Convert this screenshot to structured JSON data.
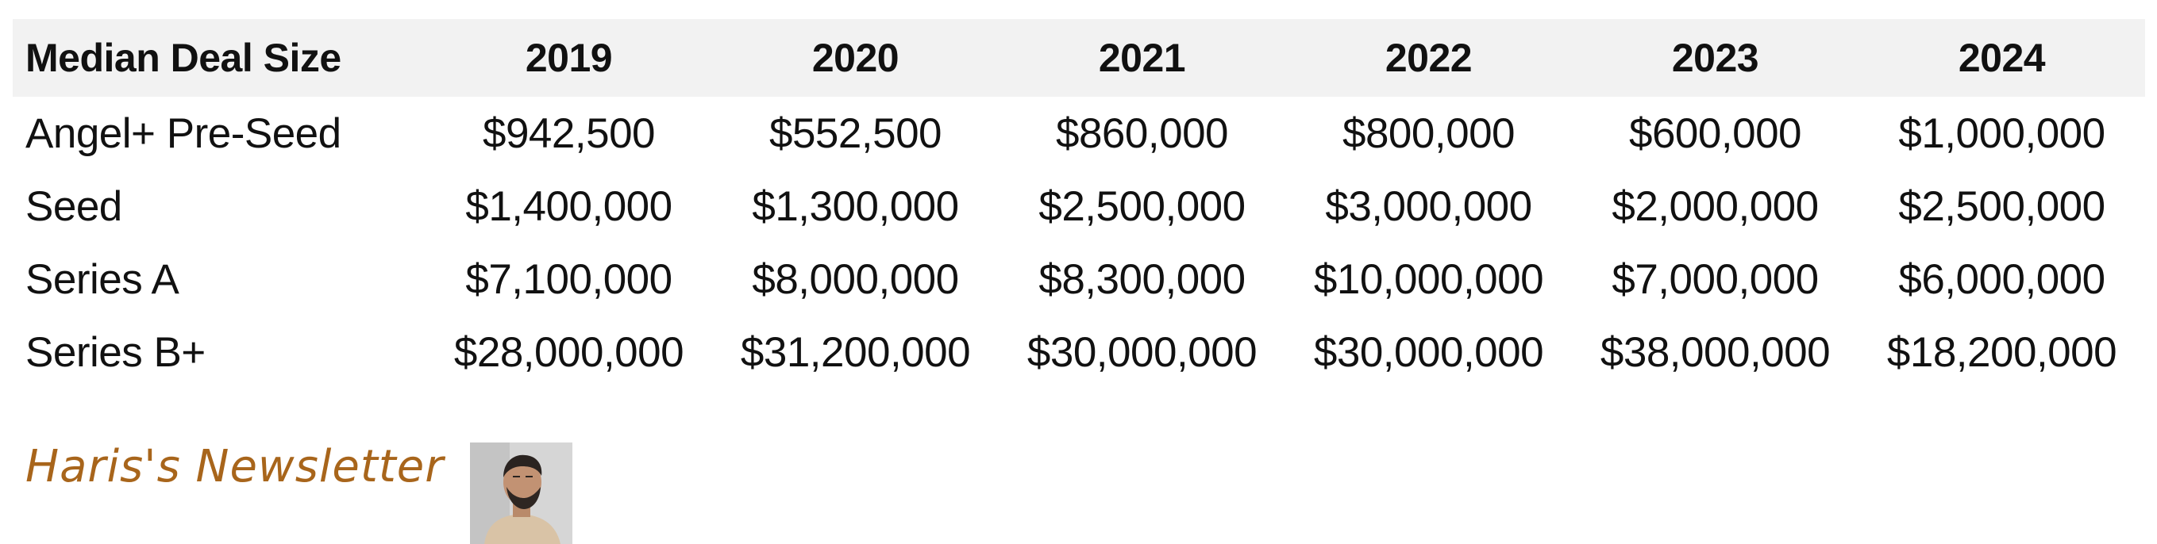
{
  "table": {
    "header": [
      "Median Deal Size",
      "2019",
      "2020",
      "2021",
      "2022",
      "2023",
      "2024"
    ],
    "rows": [
      {
        "label": "Angel+ Pre-Seed",
        "values": [
          "$942,500",
          "$552,500",
          "$860,000",
          "$800,000",
          "$600,000",
          "$1,000,000"
        ]
      },
      {
        "label": "Seed",
        "values": [
          "$1,400,000",
          "$1,300,000",
          "$2,500,000",
          "$3,000,000",
          "$2,000,000",
          "$2,500,000"
        ]
      },
      {
        "label": "Series A",
        "values": [
          "$7,100,000",
          "$8,000,000",
          "$8,300,000",
          "$10,000,000",
          "$7,000,000",
          "$6,000,000"
        ]
      },
      {
        "label": "Series B+",
        "values": [
          "$28,000,000",
          "$31,200,000",
          "$30,000,000",
          "$30,000,000",
          "$38,000,000",
          "$18,200,000"
        ]
      }
    ]
  },
  "brand": {
    "name": "Haris's Newsletter",
    "color": "#a8651b"
  }
}
